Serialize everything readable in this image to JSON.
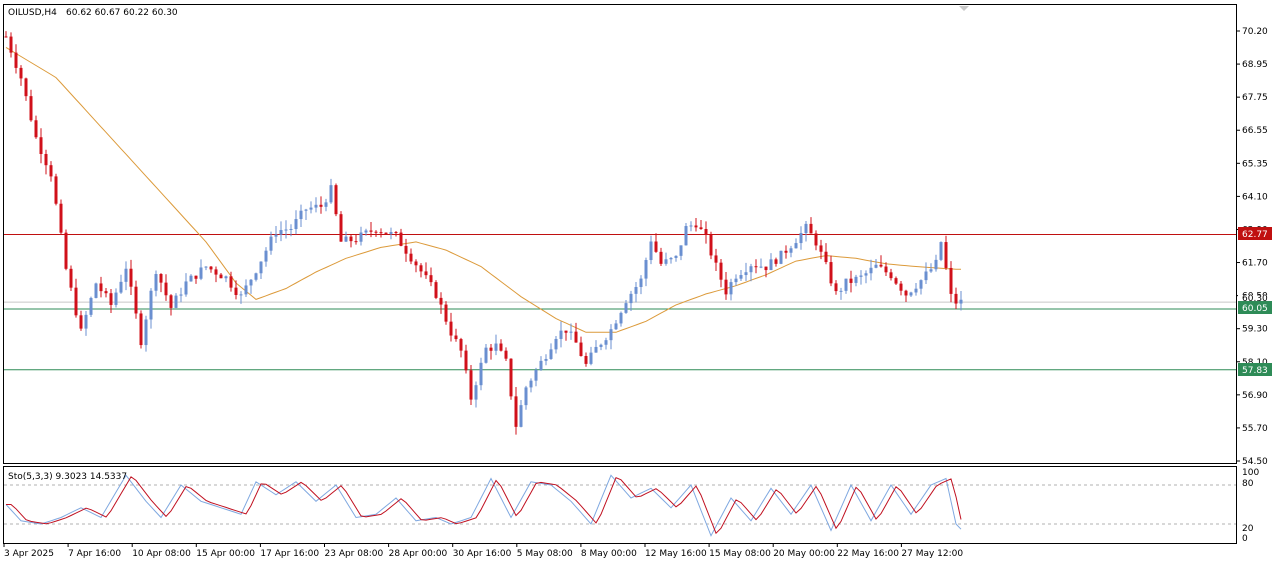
{
  "header": {
    "symbol_label": "OILUSD,H4",
    "ohlc_label": "60.62 60.67 60.22 60.30"
  },
  "colors": {
    "bull": "#6a8fd0",
    "bear": "#d0101a",
    "ma": "#dc9a3a",
    "resistance": "#c01010",
    "support": "#2e8b57",
    "stoch_main": "#7fa8e0",
    "stoch_signal": "#c01020",
    "grid_dash": "#b0b0b0"
  },
  "price_tags": {
    "resistance": "62.77",
    "support_upper": "60.05",
    "support_lower": "57.83",
    "current": "60.30"
  },
  "stoch_panel": {
    "label": "Sto(5,3,3) 9.3023 14.5337",
    "ticks": [
      "100",
      "80",
      "20",
      "0"
    ]
  },
  "chart_data": {
    "type": "candlestick",
    "symbol": "OILUSD",
    "timeframe": "H4",
    "y_ticks": [
      "70.20",
      "68.95",
      "67.75",
      "66.55",
      "65.35",
      "64.10",
      "62.90",
      "61.70",
      "60.50",
      "59.30",
      "58.10",
      "56.90",
      "55.70",
      "54.50"
    ],
    "ylim": [
      54.5,
      70.2
    ],
    "x_ticks": [
      "3 Apr 2025",
      "7 Apr 16:00",
      "10 Apr 08:00",
      "15 Apr 00:00",
      "17 Apr 16:00",
      "23 Apr 08:00",
      "28 Apr 00:00",
      "30 Apr 16:00",
      "5 May 08:00",
      "8 May 00:00",
      "12 May 16:00",
      "15 May 08:00",
      "20 May 00:00",
      "22 May 16:00",
      "27 May 12:00"
    ],
    "horizontal_levels": [
      62.77,
      60.05,
      57.83
    ],
    "close_path_anchors": [
      [
        0,
        70.0
      ],
      [
        3,
        68.5
      ],
      [
        6,
        66.3
      ],
      [
        9,
        65.0
      ],
      [
        12,
        61.5
      ],
      [
        15,
        59.2
      ],
      [
        18,
        61.0
      ],
      [
        21,
        60.2
      ],
      [
        24,
        61.6
      ],
      [
        27,
        58.9
      ],
      [
        30,
        61.5
      ],
      [
        33,
        60.1
      ],
      [
        36,
        61.0
      ],
      [
        40,
        61.6
      ],
      [
        44,
        61.2
      ],
      [
        47,
        60.5
      ],
      [
        50,
        61.5
      ],
      [
        54,
        62.9
      ],
      [
        57,
        63.0
      ],
      [
        60,
        63.7
      ],
      [
        63,
        63.8
      ],
      [
        65,
        64.4
      ],
      [
        67,
        62.5
      ],
      [
        70,
        62.6
      ],
      [
        74,
        63.0
      ],
      [
        78,
        62.7
      ],
      [
        82,
        61.7
      ],
      [
        86,
        60.6
      ],
      [
        89,
        59.2
      ],
      [
        91,
        58.5
      ],
      [
        93,
        56.8
      ],
      [
        96,
        58.6
      ],
      [
        98,
        58.7
      ],
      [
        100,
        58.1
      ],
      [
        102,
        55.8
      ],
      [
        104,
        57.2
      ],
      [
        106,
        57.8
      ],
      [
        108,
        58.4
      ],
      [
        110,
        59.1
      ],
      [
        112,
        59.3
      ],
      [
        114,
        58.8
      ],
      [
        116,
        58.0
      ],
      [
        118,
        58.6
      ],
      [
        121,
        59.3
      ],
      [
        124,
        60.4
      ],
      [
        127,
        61.1
      ],
      [
        129,
        62.6
      ],
      [
        131,
        61.7
      ],
      [
        134,
        61.9
      ],
      [
        136,
        63.0
      ],
      [
        138,
        63.2
      ],
      [
        140,
        62.6
      ],
      [
        142,
        61.6
      ],
      [
        144,
        60.7
      ],
      [
        146,
        61.3
      ],
      [
        149,
        61.7
      ],
      [
        152,
        61.6
      ],
      [
        155,
        62.0
      ],
      [
        158,
        62.6
      ],
      [
        160,
        63.0
      ],
      [
        162,
        62.5
      ],
      [
        164,
        61.6
      ],
      [
        166,
        60.6
      ],
      [
        168,
        61.0
      ],
      [
        171,
        61.2
      ],
      [
        174,
        61.6
      ],
      [
        177,
        61.3
      ],
      [
        180,
        60.6
      ],
      [
        183,
        61.1
      ],
      [
        186,
        61.7
      ],
      [
        187,
        62.5
      ],
      [
        188,
        61.5
      ],
      [
        189,
        60.5
      ],
      [
        190,
        60.3
      ]
    ],
    "ma_anchors": [
      [
        0,
        69.6
      ],
      [
        10,
        68.5
      ],
      [
        20,
        66.5
      ],
      [
        30,
        64.5
      ],
      [
        40,
        62.5
      ],
      [
        46,
        61.0
      ],
      [
        50,
        60.4
      ],
      [
        56,
        60.8
      ],
      [
        62,
        61.4
      ],
      [
        68,
        61.9
      ],
      [
        75,
        62.3
      ],
      [
        82,
        62.5
      ],
      [
        88,
        62.2
      ],
      [
        95,
        61.6
      ],
      [
        103,
        60.5
      ],
      [
        110,
        59.7
      ],
      [
        116,
        59.2
      ],
      [
        122,
        59.2
      ],
      [
        128,
        59.6
      ],
      [
        134,
        60.2
      ],
      [
        140,
        60.6
      ],
      [
        146,
        60.9
      ],
      [
        152,
        61.3
      ],
      [
        158,
        61.8
      ],
      [
        164,
        62.0
      ],
      [
        170,
        61.9
      ],
      [
        176,
        61.7
      ],
      [
        182,
        61.6
      ],
      [
        190,
        61.5
      ]
    ],
    "stoch_anchors": [
      [
        0,
        50
      ],
      [
        3,
        25
      ],
      [
        7,
        20
      ],
      [
        11,
        30
      ],
      [
        15,
        45
      ],
      [
        19,
        30
      ],
      [
        24,
        95
      ],
      [
        28,
        55
      ],
      [
        31,
        30
      ],
      [
        35,
        80
      ],
      [
        39,
        55
      ],
      [
        43,
        45
      ],
      [
        47,
        35
      ],
      [
        50,
        85
      ],
      [
        54,
        65
      ],
      [
        58,
        85
      ],
      [
        62,
        55
      ],
      [
        66,
        80
      ],
      [
        70,
        30
      ],
      [
        74,
        35
      ],
      [
        78,
        60
      ],
      [
        82,
        25
      ],
      [
        86,
        30
      ],
      [
        89,
        20
      ],
      [
        93,
        30
      ],
      [
        97,
        90
      ],
      [
        101,
        30
      ],
      [
        105,
        85
      ],
      [
        109,
        80
      ],
      [
        113,
        55
      ],
      [
        117,
        20
      ],
      [
        121,
        95
      ],
      [
        125,
        60
      ],
      [
        129,
        75
      ],
      [
        133,
        45
      ],
      [
        137,
        80
      ],
      [
        141,
        2
      ],
      [
        145,
        60
      ],
      [
        149,
        25
      ],
      [
        153,
        75
      ],
      [
        157,
        35
      ],
      [
        161,
        80
      ],
      [
        165,
        10
      ],
      [
        169,
        80
      ],
      [
        173,
        25
      ],
      [
        177,
        80
      ],
      [
        181,
        35
      ],
      [
        185,
        80
      ],
      [
        188,
        90
      ],
      [
        190,
        20
      ],
      [
        191,
        12
      ]
    ]
  }
}
